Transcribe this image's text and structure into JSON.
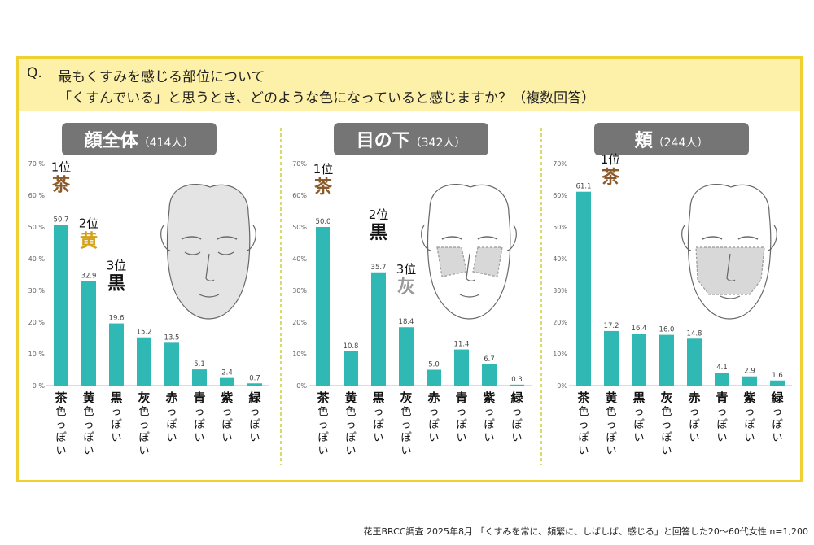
{
  "question": {
    "mark": "Q.",
    "line1": "最もくすみを感じる部位について",
    "line2": "「くすんでいる」と思うとき、どのような色になっていると感じますか？（複数回答）"
  },
  "footnote": "花王BRCC調査 2025年8月 「くすみを常に、頻繁に、しばしば、感じる」と回答した20～60代女性 n=1,200",
  "colors": {
    "bar": "#2fb8b4",
    "frame": "#f0d030",
    "header_bg": "#fdf0a8",
    "title_bg": "#757575",
    "brown": "#8b5a2b",
    "gold": "#d4a017",
    "gray_rank": "#999999"
  },
  "chart_data": [
    {
      "type": "bar",
      "title": "顔全体",
      "count": "（414人）",
      "ylim": [
        0,
        70
      ],
      "yticks": [
        "0 %",
        "10 %",
        "20 %",
        "30 %",
        "40 %",
        "50 %",
        "60 %",
        "70 %"
      ],
      "categories": [
        "茶色っぽい",
        "黄色っぽい",
        "黒っぽい",
        "灰色っぽい",
        "赤っぽい",
        "青っぽい",
        "紫っぽい",
        "緑っぽい"
      ],
      "values": [
        50.7,
        32.9,
        19.6,
        15.2,
        13.5,
        5.1,
        2.4,
        0.7
      ],
      "value_labels": [
        "50.7",
        "32.9",
        "19.6",
        "15.2",
        "13.5",
        "5.1",
        "2.4",
        "0.7"
      ],
      "ranks": [
        {
          "index": 0,
          "rank": "1位",
          "char": "茶",
          "color": "brown"
        },
        {
          "index": 1,
          "rank": "2位",
          "char": "黄",
          "color": "gold"
        },
        {
          "index": 2,
          "rank": "3位",
          "char": "黒",
          "color": "black"
        }
      ]
    },
    {
      "type": "bar",
      "title": "目の下",
      "count": "（342人）",
      "ylim": [
        0,
        70
      ],
      "yticks": [
        "0%",
        "10%",
        "20%",
        "30%",
        "40%",
        "50%",
        "60%",
        "70%"
      ],
      "categories": [
        "茶色っぽい",
        "黄色っぽい",
        "黒っぽい",
        "灰色っぽい",
        "赤っぽい",
        "青っぽい",
        "紫っぽい",
        "緑っぽい"
      ],
      "values": [
        50.0,
        10.8,
        35.7,
        18.4,
        5.0,
        11.4,
        6.7,
        0.3
      ],
      "value_labels": [
        "50.0",
        "10.8",
        "35.7",
        "18.4",
        "5.0",
        "11.4",
        "6.7",
        "0.3"
      ],
      "ranks": [
        {
          "index": 0,
          "rank": "1位",
          "char": "茶",
          "color": "brown"
        },
        {
          "index": 2,
          "rank": "2位",
          "char": "黒",
          "color": "black"
        },
        {
          "index": 3,
          "rank": "3位",
          "char": "灰",
          "color": "gray"
        }
      ]
    },
    {
      "type": "bar",
      "title": "頬",
      "count": "（244人）",
      "ylim": [
        0,
        70
      ],
      "yticks": [
        "0%",
        "10%",
        "20%",
        "30%",
        "40%",
        "50%",
        "60%",
        "70%"
      ],
      "categories": [
        "茶色っぽい",
        "黄色っぽい",
        "黒っぽい",
        "灰色っぽい",
        "赤っぽい",
        "青っぽい",
        "紫っぽい",
        "緑っぽい"
      ],
      "values": [
        61.1,
        17.2,
        16.4,
        16.0,
        14.8,
        4.1,
        2.9,
        1.6
      ],
      "value_labels": [
        "61.1",
        "17.2",
        "16.4",
        "16.0",
        "14.8",
        "4.1",
        "2.9",
        "1.6"
      ],
      "ranks": [
        {
          "index": 0,
          "rank": "1位",
          "char": "茶",
          "color": "brown"
        }
      ]
    }
  ]
}
